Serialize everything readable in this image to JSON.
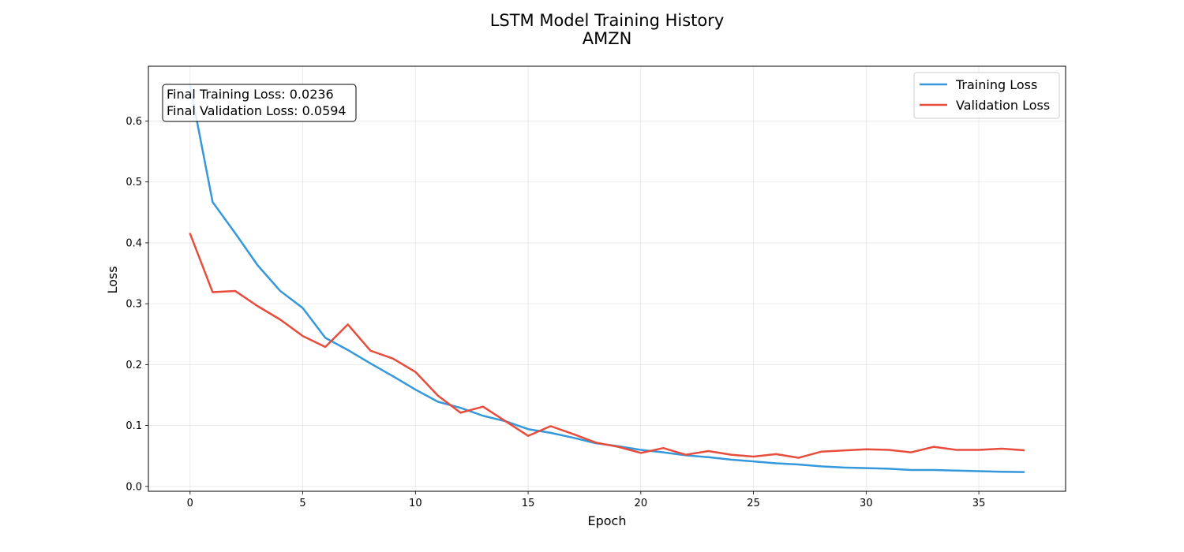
{
  "chart_data": {
    "type": "line",
    "title": "LSTM Model Training History",
    "subtitle": "AMZN",
    "xlabel": "Epoch",
    "ylabel": "Loss",
    "xlim": [
      -1.85,
      38.85
    ],
    "ylim": [
      -0.008,
      0.69
    ],
    "xticks": [
      0,
      5,
      10,
      15,
      20,
      25,
      30,
      35
    ],
    "yticks": [
      0.0,
      0.1,
      0.2,
      0.3,
      0.4,
      0.5,
      0.6
    ],
    "xtick_labels": [
      "0",
      "5",
      "10",
      "15",
      "20",
      "25",
      "30",
      "35"
    ],
    "ytick_labels": [
      "0.0",
      "0.1",
      "0.2",
      "0.3",
      "0.4",
      "0.5",
      "0.6"
    ],
    "grid": true,
    "legend_position": "top-right",
    "x": [
      0,
      1,
      2,
      3,
      4,
      5,
      6,
      7,
      8,
      9,
      10,
      11,
      12,
      13,
      14,
      15,
      16,
      17,
      18,
      19,
      20,
      21,
      22,
      23,
      24,
      25,
      26,
      27,
      28,
      29,
      30,
      31,
      32,
      33,
      34,
      35,
      36,
      37
    ],
    "series": [
      {
        "name": "Training Loss",
        "color": "#3498db",
        "values": [
          0.658,
          0.467,
          0.416,
          0.363,
          0.321,
          0.293,
          0.244,
          0.224,
          0.202,
          0.181,
          0.159,
          0.139,
          0.129,
          0.116,
          0.107,
          0.094,
          0.088,
          0.08,
          0.071,
          0.066,
          0.06,
          0.056,
          0.051,
          0.048,
          0.044,
          0.041,
          0.038,
          0.036,
          0.033,
          0.031,
          0.03,
          0.029,
          0.027,
          0.027,
          0.026,
          0.025,
          0.024,
          0.0236
        ]
      },
      {
        "name": "Validation Loss",
        "color": "#e74c3c",
        "values": [
          0.415,
          0.319,
          0.321,
          0.296,
          0.274,
          0.247,
          0.229,
          0.266,
          0.223,
          0.21,
          0.188,
          0.149,
          0.121,
          0.131,
          0.107,
          0.083,
          0.099,
          0.086,
          0.072,
          0.065,
          0.055,
          0.063,
          0.052,
          0.058,
          0.052,
          0.049,
          0.053,
          0.047,
          0.057,
          0.059,
          0.061,
          0.06,
          0.056,
          0.065,
          0.06,
          0.06,
          0.062,
          0.0594
        ]
      }
    ],
    "annotation": {
      "line1": "Final Training Loss: 0.0236",
      "line2": "Final Validation Loss: 0.0594"
    }
  }
}
